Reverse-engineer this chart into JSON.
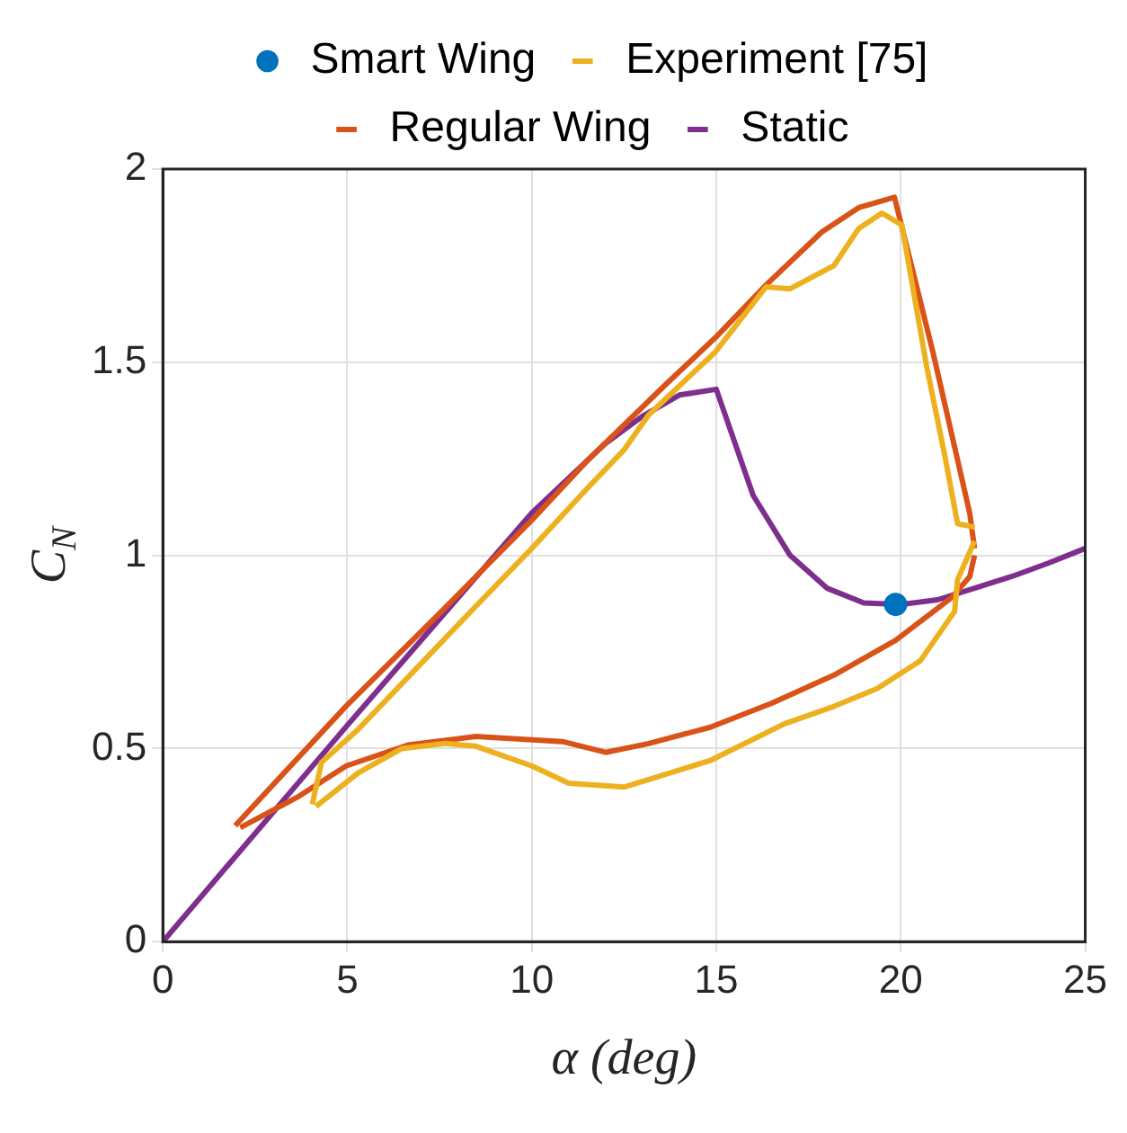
{
  "chart_data": {
    "type": "line",
    "xlabel": "α (deg)",
    "ylabel": "C$_{N}$",
    "xlim": [
      0,
      25
    ],
    "ylim": [
      0,
      2
    ],
    "xticks": [
      0,
      5,
      10,
      15,
      20,
      25
    ],
    "yticks": [
      0,
      0.5,
      1,
      1.5,
      2
    ],
    "grid": true,
    "legend": "top",
    "series": [
      {
        "name": "Smart Wing",
        "type": "scatter",
        "marker": "circle",
        "color": "#0072bd",
        "x": [
          19.86
        ],
        "values": [
          0.873
        ]
      },
      {
        "name": "Experiment [75]",
        "marker": "none",
        "color": "#edb120",
        "x": [
          4.05,
          4.3,
          5.3,
          7,
          8.5,
          10,
          11.5,
          12.5,
          13.17,
          14.98,
          16.35,
          17.0,
          18.19,
          18.86,
          19.49,
          20.03,
          20.7,
          21.2,
          21.54,
          22.0
        ],
        "values": [
          0.355,
          0.464,
          0.55,
          0.72,
          0.87,
          1.018,
          1.173,
          1.273,
          1.364,
          1.527,
          1.695,
          1.69,
          1.75,
          1.846,
          1.886,
          1.855,
          1.49,
          1.255,
          1.082,
          1.073
        ]
      },
      {
        "marker": "none",
        "color": "#edb120",
        "x": [
          4.15,
          5.3,
          6.48,
          7.65,
          8.48,
          10.0,
          11.0,
          12.5,
          14.84,
          16.85,
          18.19,
          19.36,
          20.53,
          21.46,
          21.54,
          22.0
        ],
        "values": [
          0.35,
          0.437,
          0.5,
          0.513,
          0.506,
          0.455,
          0.41,
          0.4,
          0.469,
          0.564,
          0.609,
          0.655,
          0.727,
          0.855,
          0.937,
          1.037
        ]
      },
      {
        "name": "Regular Wing",
        "marker": "none",
        "color": "#d95319",
        "x": [
          1.96,
          4.97,
          7.5,
          9.99,
          11.5,
          13.67,
          14.98,
          16.35,
          17.86,
          18.86,
          19.83,
          20.87,
          21.87,
          22.0
        ],
        "values": [
          0.3,
          0.61,
          0.85,
          1.09,
          1.245,
          1.446,
          1.564,
          1.7,
          1.837,
          1.9,
          1.927,
          1.527,
          1.109,
          1.018
        ]
      },
      {
        "marker": "none",
        "color": "#d95319",
        "x": [
          2.1,
          3.63,
          4.97,
          6.64,
          8.48,
          10.83,
          12.0,
          13.17,
          14.84,
          16.52,
          18.19,
          19.86,
          21.37,
          21.87,
          22.0
        ],
        "values": [
          0.295,
          0.373,
          0.455,
          0.509,
          0.531,
          0.518,
          0.49,
          0.513,
          0.555,
          0.618,
          0.69,
          0.78,
          0.89,
          0.945,
          1.0
        ]
      },
      {
        "name": "Static",
        "marker": "none",
        "color": "#7e2f8e",
        "x": [
          0,
          5,
          10,
          12,
          13,
          14,
          15,
          16,
          17,
          18,
          19,
          20,
          21,
          22,
          23,
          24,
          25
        ],
        "values": [
          0,
          0.56,
          1.11,
          1.29,
          1.36,
          1.415,
          1.43,
          1.155,
          1.0,
          0.915,
          0.877,
          0.873,
          0.885,
          0.915,
          0.945,
          0.98,
          1.018
        ]
      }
    ]
  }
}
